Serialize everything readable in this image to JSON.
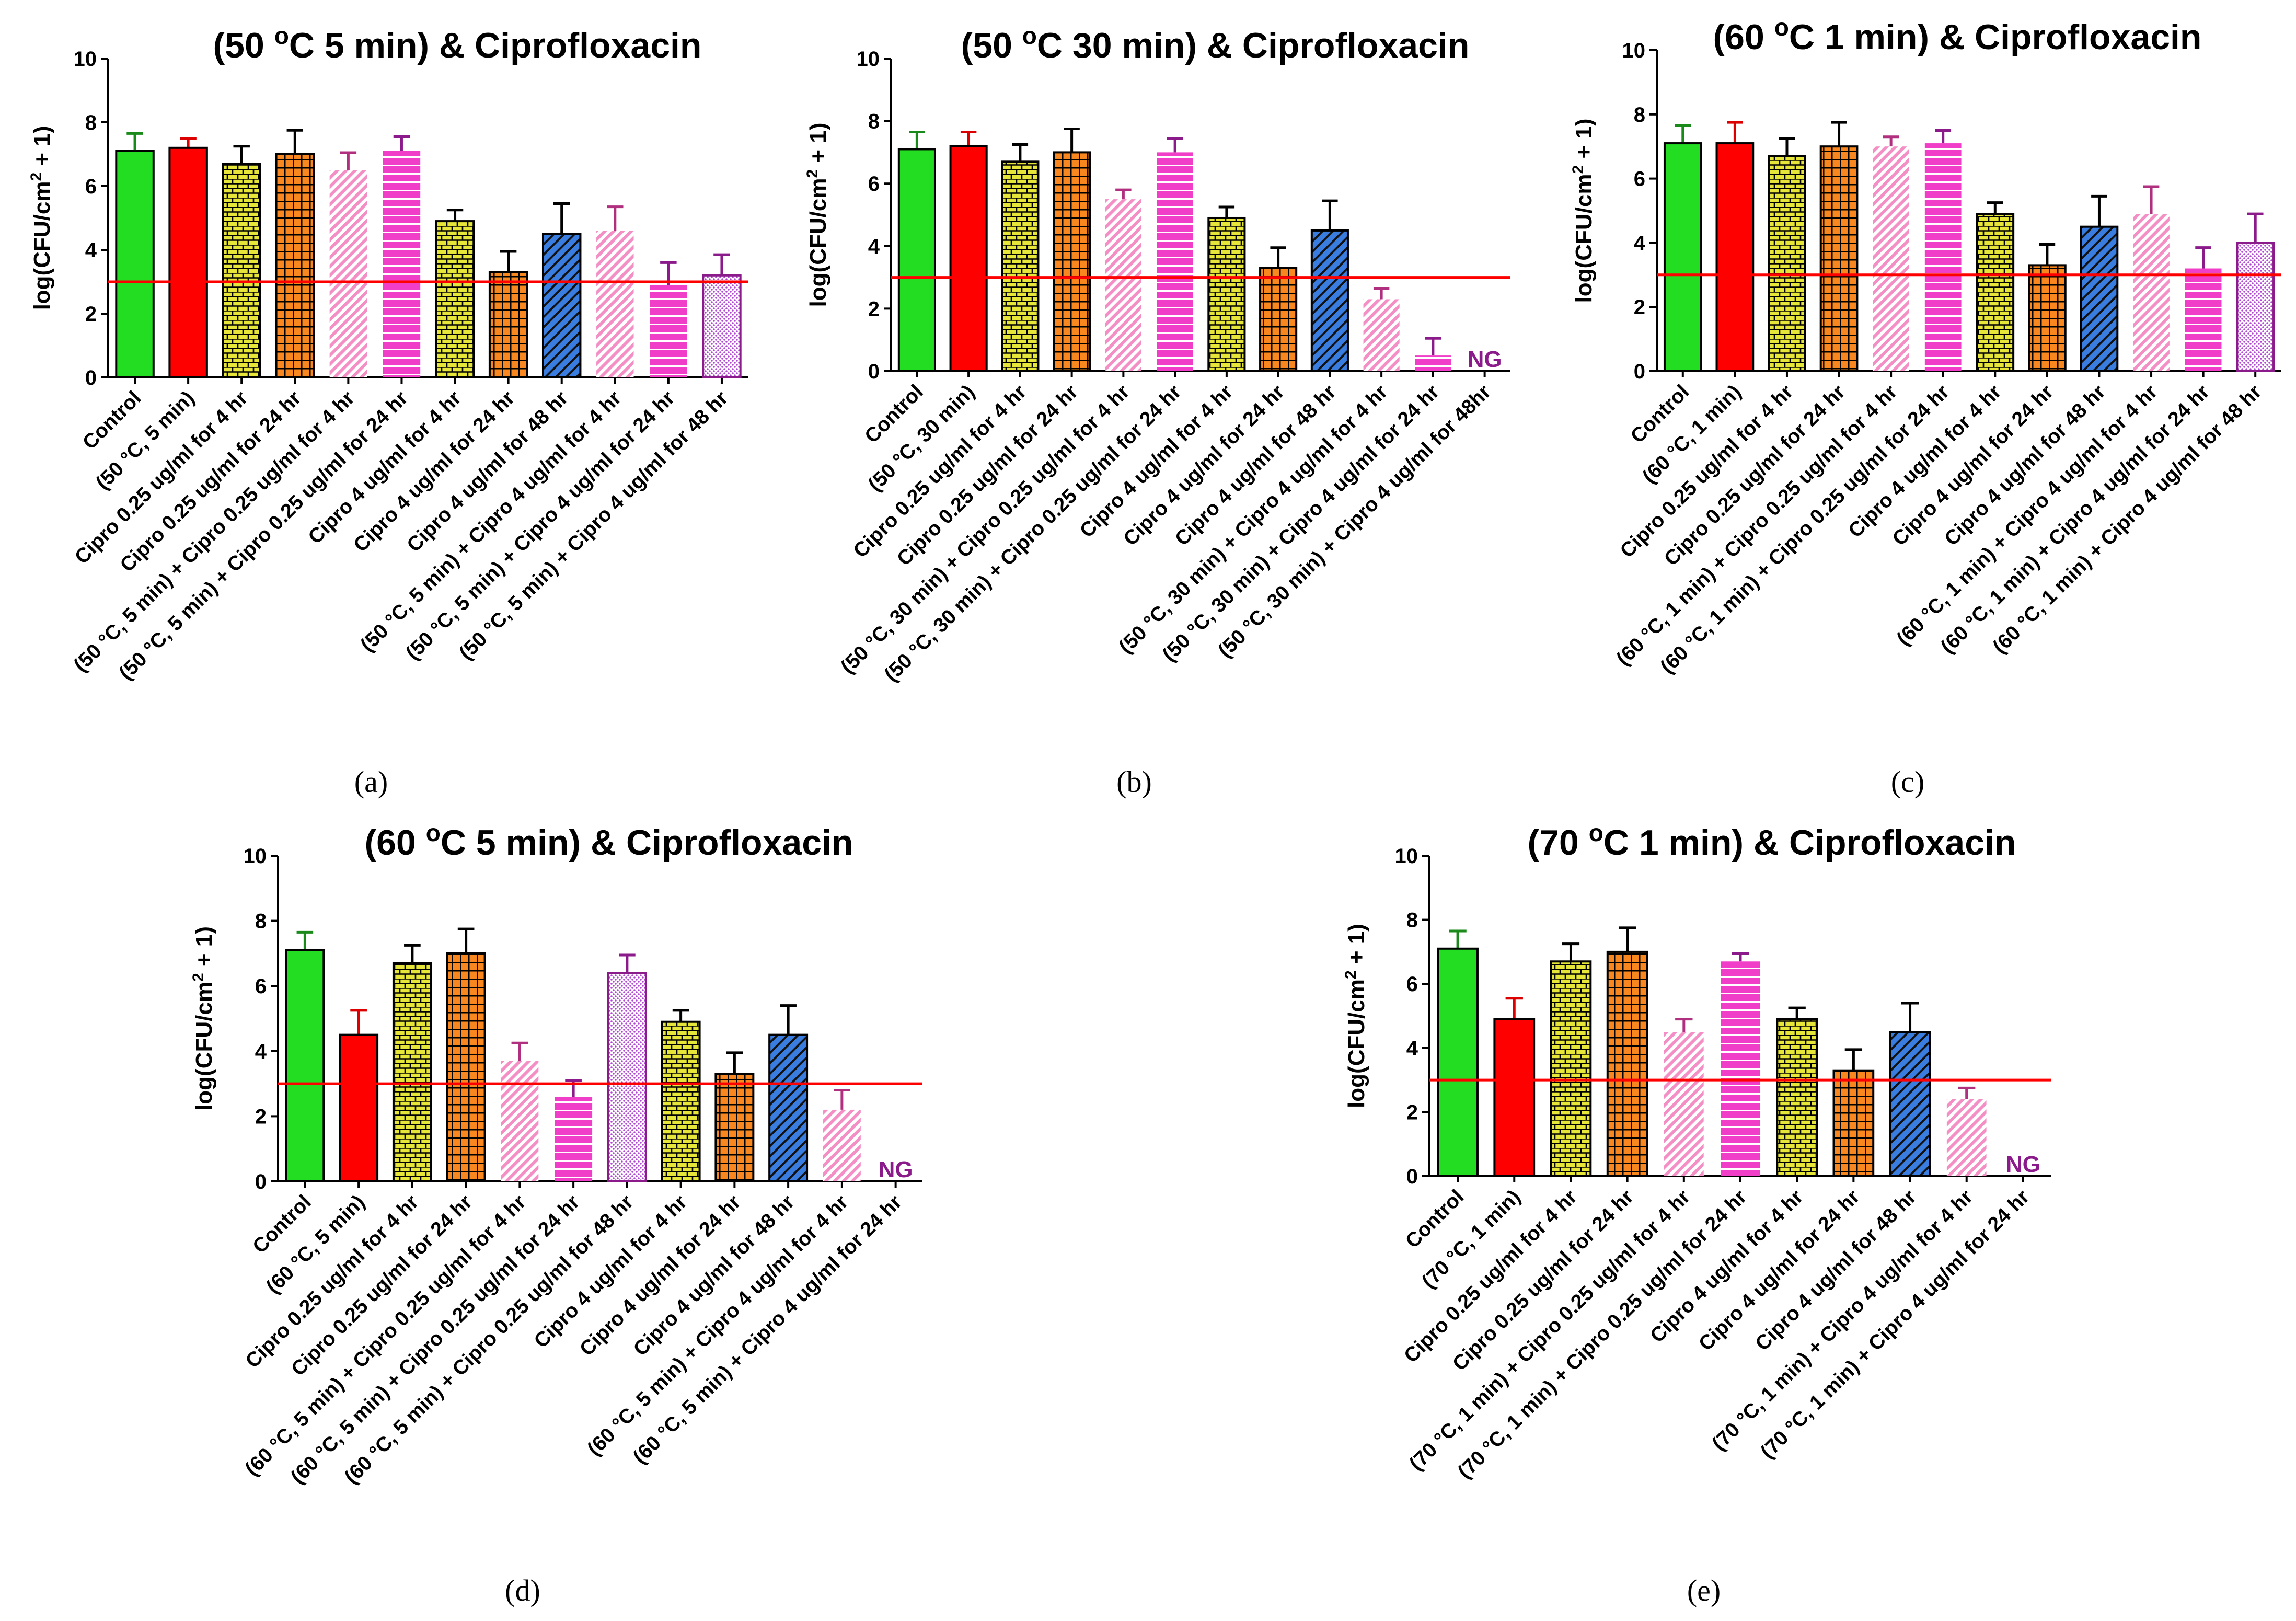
{
  "ylabel_parts": [
    "log(CFU/cm",
    "2",
    " + 1)"
  ],
  "colors": {
    "green": "#22dd22",
    "red": "#ff0000",
    "yellow": "#e6e63a",
    "orange": "#f7871e",
    "pink": "#f48fc6",
    "magenta": "#f03ec8",
    "blue": "#3a7de0",
    "purple_dot": "#d78be8",
    "threshold": "#ff0000",
    "ng": "#8b1a8b"
  },
  "chart_data": [
    {
      "type": "bar",
      "caption": "(a)",
      "title_parts": [
        "(50 ",
        "o",
        "C 5 min) & Ciprofloxacin"
      ],
      "xlabel": "",
      "ylim": [
        0,
        10
      ],
      "yticks": [
        "0",
        "2",
        "4",
        "6",
        "8",
        "10"
      ],
      "threshold": 3,
      "categories": [
        "Control",
        "(50 °C, 5 min)",
        "Cipro 0.25 ug/ml for 4 hr",
        "Cipro 0.25 ug/ml for 24 hr",
        "(50 °C, 5 min) + Cipro 0.25 ug/ml for 4 hr",
        "(50 °C, 5 min) + Cipro 0.25 ug/ml for 24 hr",
        "Cipro 4 ug/ml for 4 hr",
        "Cipro 4 ug/ml for 24 hr",
        "Cipro 4 ug/ml for 48 hr",
        "(50 °C, 5 min) + Cipro 4 ug/ml for 4 hr",
        "(50 °C, 5 min) + Cipro 4 ug/ml for 24 hr",
        "(50 °C, 5 min) + Cipro 4 ug/ml for 48 hr"
      ],
      "values": [
        7.1,
        7.2,
        6.7,
        7.0,
        6.5,
        7.1,
        4.9,
        3.3,
        4.5,
        4.6,
        2.9,
        3.2
      ],
      "errors": [
        0.55,
        0.3,
        0.55,
        0.75,
        0.55,
        0.45,
        0.35,
        0.65,
        0.95,
        0.75,
        0.7,
        0.65
      ],
      "styles": [
        "green",
        "red",
        "yellow",
        "orange",
        "pink",
        "magenta",
        "yellow",
        "orange",
        "blue",
        "pink",
        "magenta",
        "purple_dot"
      ],
      "ng_label": ""
    },
    {
      "type": "bar",
      "caption": "(b)",
      "title_parts": [
        "(50 ",
        "o",
        "C 30 min) & Ciprofloxacin"
      ],
      "xlabel": "",
      "ylim": [
        0,
        10
      ],
      "yticks": [
        "0",
        "2",
        "4",
        "6",
        "8",
        "10"
      ],
      "threshold": 3,
      "categories": [
        "Control",
        "(50 °C, 30 min)",
        "Cipro 0.25 ug/ml for 4 hr",
        "Cipro 0.25 ug/ml for 24 hr",
        "(50 °C, 30 min) + Cipro 0.25 ug/ml for 4 hr",
        "(50 °C, 30 min) + Cipro 0.25 ug/ml for 24 hr",
        "Cipro 4 ug/ml for 4 hr",
        "Cipro 4 ug/ml for 24 hr",
        "Cipro 4 ug/ml for 48 hr",
        "(50 °C, 30 min) + Cipro 4 ug/ml for 4 hr",
        "(50 °C, 30 min) + Cipro 4 ug/ml for 24 hr",
        "(50 °C, 30 min) + Cipro 4 ug/ml for 48hr"
      ],
      "values": [
        7.1,
        7.2,
        6.7,
        7.0,
        5.5,
        7.0,
        4.9,
        3.3,
        4.5,
        2.3,
        0.5,
        null
      ],
      "errors": [
        0.55,
        0.45,
        0.55,
        0.75,
        0.3,
        0.45,
        0.35,
        0.65,
        0.95,
        0.35,
        0.55,
        0
      ],
      "styles": [
        "green",
        "red",
        "yellow",
        "orange",
        "pink",
        "magenta",
        "yellow",
        "orange",
        "blue",
        "pink",
        "magenta",
        "purple_dot"
      ],
      "ng_label": "NG"
    },
    {
      "type": "bar",
      "caption": "(c)",
      "title_parts": [
        "(60 ",
        "o",
        "C 1 min) & Ciprofloxacin"
      ],
      "xlabel": "",
      "ylim": [
        0,
        10
      ],
      "yticks": [
        "0",
        "2",
        "4",
        "6",
        "8",
        "10"
      ],
      "threshold": 3,
      "categories": [
        "Control",
        "(60 °C, 1 min)",
        "Cipro 0.25 ug/ml for 4 hr",
        "Cipro 0.25 ug/ml for 24 hr",
        "(60 °C, 1 min) + Cipro 0.25 ug/ml for 4 hr",
        "(60 °C, 1 min) + Cipro 0.25 ug/ml for 24 hr",
        "Cipro 4 ug/ml for 4 hr",
        "Cipro 4 ug/ml for 24 hr",
        "Cipro 4 ug/ml for 48 hr",
        "(60 °C, 1 min) + Cipro 4 ug/ml for 4 hr",
        "(60 °C, 1 min) + Cipro 4 ug/ml for 24 hr",
        "(60 °C, 1 min) + Cipro 4 ug/ml for 48 hr"
      ],
      "values": [
        7.1,
        7.1,
        6.7,
        7.0,
        7.0,
        7.1,
        4.9,
        3.3,
        4.5,
        4.9,
        3.2,
        4.0
      ],
      "errors": [
        0.55,
        0.65,
        0.55,
        0.75,
        0.3,
        0.4,
        0.35,
        0.65,
        0.95,
        0.85,
        0.65,
        0.9
      ],
      "styles": [
        "green",
        "red",
        "yellow",
        "orange",
        "pink",
        "magenta",
        "yellow",
        "orange",
        "blue",
        "pink",
        "magenta",
        "purple_dot"
      ],
      "ng_label": ""
    },
    {
      "type": "bar",
      "caption": "(d)",
      "title_parts": [
        "(60 ",
        "o",
        "C 5 min) & Ciprofloxacin"
      ],
      "xlabel": "",
      "ylim": [
        0,
        10
      ],
      "yticks": [
        "0",
        "2",
        "4",
        "6",
        "8",
        "10"
      ],
      "threshold": 3,
      "categories": [
        "Control",
        "(60 °C, 5 min)",
        "Cipro 0.25 ug/ml for 4 hr",
        "Cipro 0.25 ug/ml for 24 hr",
        "(60 °C, 5 min) + Cipro 0.25 ug/ml for 4 hr",
        "(60 °C, 5 min) + Cipro 0.25 ug/ml for 24 hr",
        "(60 °C, 5 min) + Cipro 0.25 ug/ml for 48 hr",
        "Cipro 4 ug/ml for 4 hr",
        "Cipro 4 ug/ml for 24 hr",
        "Cipro 4 ug/ml for 48 hr",
        "(60 °C, 5 min) + Cipro 4 ug/ml for 4 hr",
        "(60 °C, 5 min) + Cipro 4 ug/ml for 24 hr"
      ],
      "values": [
        7.1,
        4.5,
        6.7,
        7.0,
        3.7,
        2.6,
        6.4,
        4.9,
        3.3,
        4.5,
        2.2,
        null
      ],
      "errors": [
        0.55,
        0.75,
        0.55,
        0.75,
        0.55,
        0.5,
        0.55,
        0.35,
        0.65,
        0.9,
        0.6,
        0
      ],
      "styles": [
        "green",
        "red",
        "yellow",
        "orange",
        "pink",
        "magenta",
        "purple_dot",
        "yellow",
        "orange",
        "blue",
        "pink",
        "magenta"
      ],
      "ng_label": "NG"
    },
    {
      "type": "bar",
      "caption": "(e)",
      "title_parts": [
        "(70 ",
        "o",
        "C 1 min) & Ciprofloxacin"
      ],
      "xlabel": "",
      "ylim": [
        0,
        10
      ],
      "yticks": [
        "0",
        "2",
        "4",
        "6",
        "8",
        "10"
      ],
      "threshold": 3,
      "categories": [
        "Control",
        "(70 °C, 1 min)",
        "Cipro 0.25 ug/ml for 4 hr",
        "Cipro 0.25 ug/ml for 24 hr",
        "(70 °C, 1 min) + Cipro 0.25 ug/ml for 4 hr",
        "(70 °C, 1 min) + Cipro 0.25 ug/ml for 24 hr",
        "Cipro 4 ug/ml for 4 hr",
        "Cipro 4 ug/ml for 24 hr",
        "Cipro 4 ug/ml for 48 hr",
        "(70 °C, 1 min) + Cipro 4 ug/ml for 4 hr",
        "(70 °C, 1 min) + Cipro 4 ug/ml for 24 hr"
      ],
      "values": [
        7.1,
        4.9,
        6.7,
        7.0,
        4.5,
        6.7,
        4.9,
        3.3,
        4.5,
        2.4,
        null
      ],
      "errors": [
        0.55,
        0.65,
        0.55,
        0.75,
        0.4,
        0.25,
        0.35,
        0.65,
        0.9,
        0.35,
        0
      ],
      "styles": [
        "green",
        "red",
        "yellow",
        "orange",
        "pink",
        "magenta",
        "yellow",
        "orange",
        "blue",
        "pink",
        "magenta"
      ],
      "ng_label": "NG"
    }
  ]
}
